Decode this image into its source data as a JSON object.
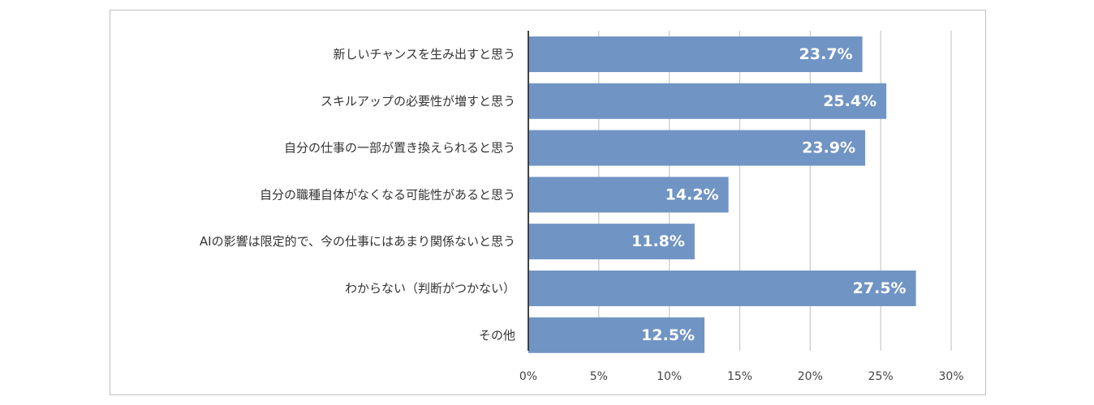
{
  "chart_data": {
    "type": "bar",
    "orientation": "horizontal",
    "categories": [
      "新しいチャンスを生み出すと思う",
      "スキルアップの必要性が増すと思う",
      "自分の仕事の一部が置き換えられると思う",
      "自分の職種自体がなくなる可能性があると思う",
      "AIの影響は限定的で、今の仕事にはあまり関係ないと思う",
      "わからない（判断がつかない）",
      "その他"
    ],
    "values": [
      23.7,
      25.4,
      23.9,
      14.2,
      11.8,
      27.5,
      12.5
    ],
    "data_labels": [
      "23.7%",
      "25.4%",
      "23.9%",
      "14.2%",
      "11.8%",
      "27.5%",
      "12.5%"
    ],
    "x_ticks": [
      0,
      5,
      10,
      15,
      20,
      25,
      30
    ],
    "x_tick_labels": [
      "0%",
      "5%",
      "10%",
      "15%",
      "20%",
      "25%",
      "30%"
    ],
    "xlim": [
      0,
      30
    ],
    "title": "",
    "xlabel": "",
    "ylabel": "",
    "grid": true,
    "legend": "none",
    "colors": {
      "bar": "#7094c4",
      "grid": "#c8c8c8",
      "axis": "#404040"
    }
  }
}
